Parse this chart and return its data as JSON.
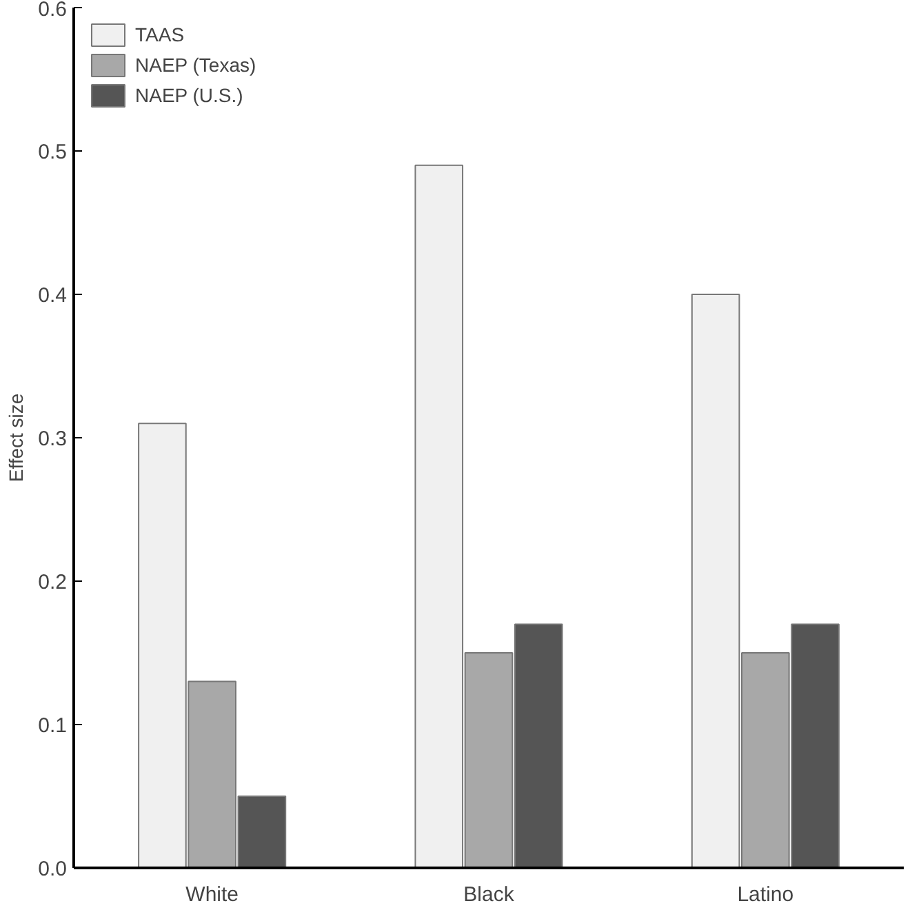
{
  "chart_data": {
    "type": "bar",
    "ylabel": "Effect size",
    "categories": [
      "White",
      "Black",
      "Latino"
    ],
    "series": [
      {
        "name": "TAAS",
        "color": "#f0f0f0",
        "values": [
          0.31,
          0.49,
          0.4
        ]
      },
      {
        "name": "NAEP (Texas)",
        "color": "#a8a8a8",
        "values": [
          0.13,
          0.15,
          0.15
        ]
      },
      {
        "name": "NAEP (U.S.)",
        "color": "#555555",
        "values": [
          0.05,
          0.17,
          0.17
        ]
      }
    ],
    "ylim": [
      0,
      0.6
    ],
    "yticks": [
      "0.0",
      0.1,
      0.2,
      0.3,
      0.4,
      0.5,
      0.6
    ],
    "grid": false,
    "legend": "top left"
  }
}
